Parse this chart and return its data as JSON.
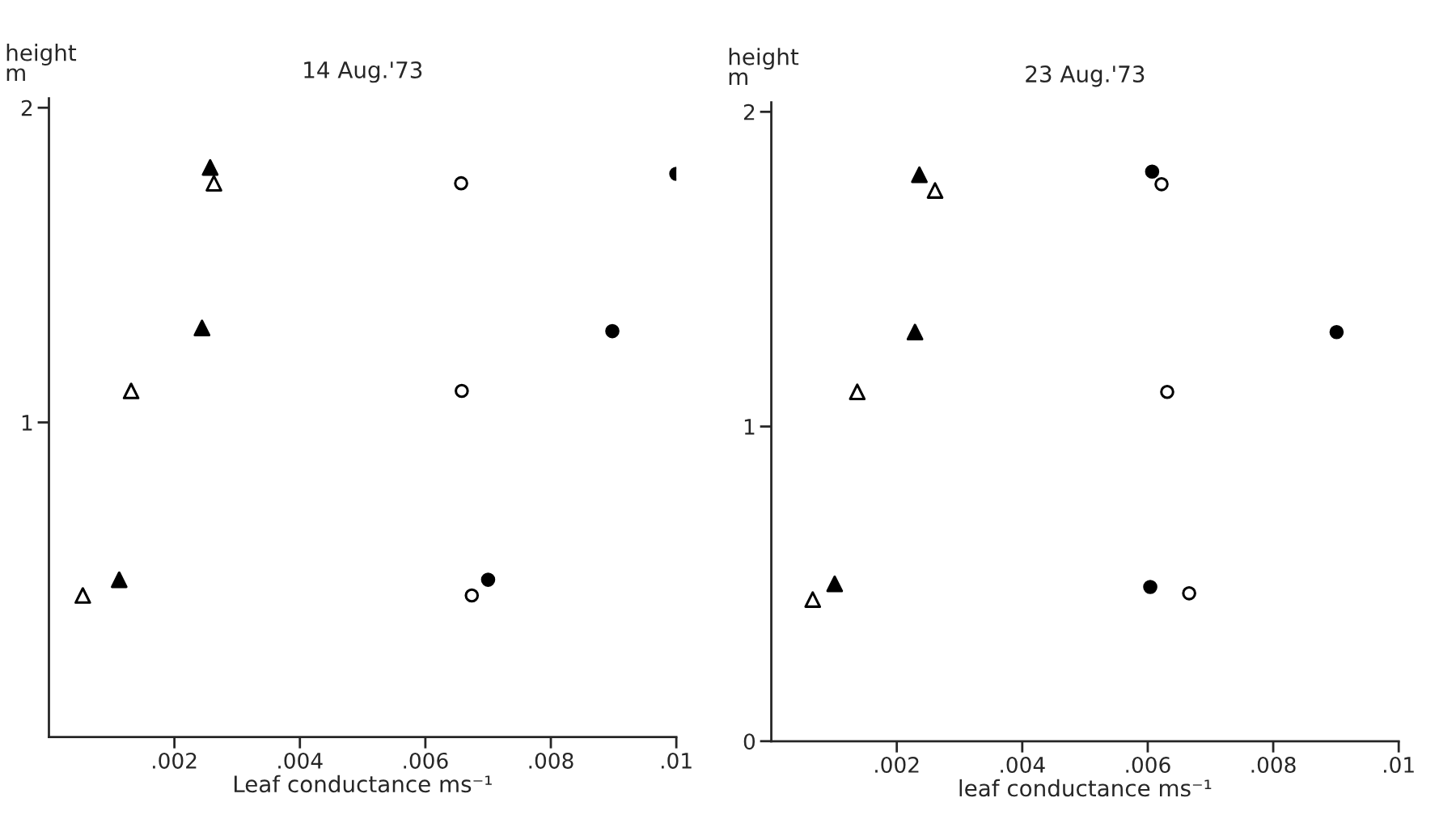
{
  "chart_data": [
    {
      "type": "scatter",
      "title": "14 Aug.'73",
      "xlabel": "Leaf conductance ms⁻¹",
      "ylabel": "height\nm",
      "xlim": [
        0,
        0.01
      ],
      "ylim": [
        0,
        2.03
      ],
      "xticks": [
        {
          "value": 0.002,
          "label": ".002"
        },
        {
          "value": 0.004,
          "label": ".004"
        },
        {
          "value": 0.006,
          "label": ".006"
        },
        {
          "value": 0.008,
          "label": ".008"
        },
        {
          "value": 0.01,
          "label": ".01"
        }
      ],
      "yticks": [
        1,
        2
      ],
      "grid": false,
      "legend": false,
      "series": [
        {
          "color": "#000000",
          "marker": "triangle",
          "x": [
            0.00257,
            0.00244,
            0.00112
          ],
          "values": [
            1.81,
            1.3,
            0.5
          ]
        },
        {
          "color": "#ffffff",
          "marker": "triangle",
          "x": [
            0.00263,
            0.00131,
            0.00054
          ],
          "values": [
            1.76,
            1.1,
            0.45
          ]
        },
        {
          "color": "#000000",
          "marker": "circle",
          "x": [
            0.01,
            0.00898,
            0.007
          ],
          "values": [
            1.79,
            1.29,
            0.5
          ]
        },
        {
          "color": "#ffffff",
          "marker": "circle",
          "x": [
            0.00657,
            0.00658,
            0.00674
          ],
          "values": [
            1.76,
            1.1,
            0.45
          ]
        }
      ]
    },
    {
      "type": "scatter",
      "title": "23 Aug.'73",
      "xlabel": "leaf conductance ms⁻¹",
      "ylabel": "height\nm",
      "xlim": [
        0,
        0.01
      ],
      "ylim": [
        0,
        2.03
      ],
      "xticks": [
        {
          "value": 0.002,
          "label": ".002"
        },
        {
          "value": 0.004,
          "label": ".004"
        },
        {
          "value": 0.006,
          "label": ".006"
        },
        {
          "value": 0.008,
          "label": ".008"
        },
        {
          "value": 0.01,
          "label": ".01"
        }
      ],
      "yticks": [
        0,
        1,
        2
      ],
      "grid": false,
      "legend": false,
      "series": [
        {
          "color": "#000000",
          "marker": "triangle",
          "x": [
            0.00236,
            0.00229,
            0.00101
          ],
          "values": [
            1.8,
            1.3,
            0.5
          ]
        },
        {
          "color": "#ffffff",
          "marker": "triangle",
          "x": [
            0.00261,
            0.00137,
            0.00066
          ],
          "values": [
            1.75,
            1.11,
            0.45
          ]
        },
        {
          "color": "#000000",
          "marker": "circle",
          "x": [
            0.00607,
            0.00901,
            0.00604
          ],
          "values": [
            1.81,
            1.3,
            0.49
          ]
        },
        {
          "color": "#ffffff",
          "marker": "circle",
          "x": [
            0.00622,
            0.00631,
            0.00666
          ],
          "values": [
            1.77,
            1.11,
            0.47
          ]
        }
      ]
    }
  ]
}
